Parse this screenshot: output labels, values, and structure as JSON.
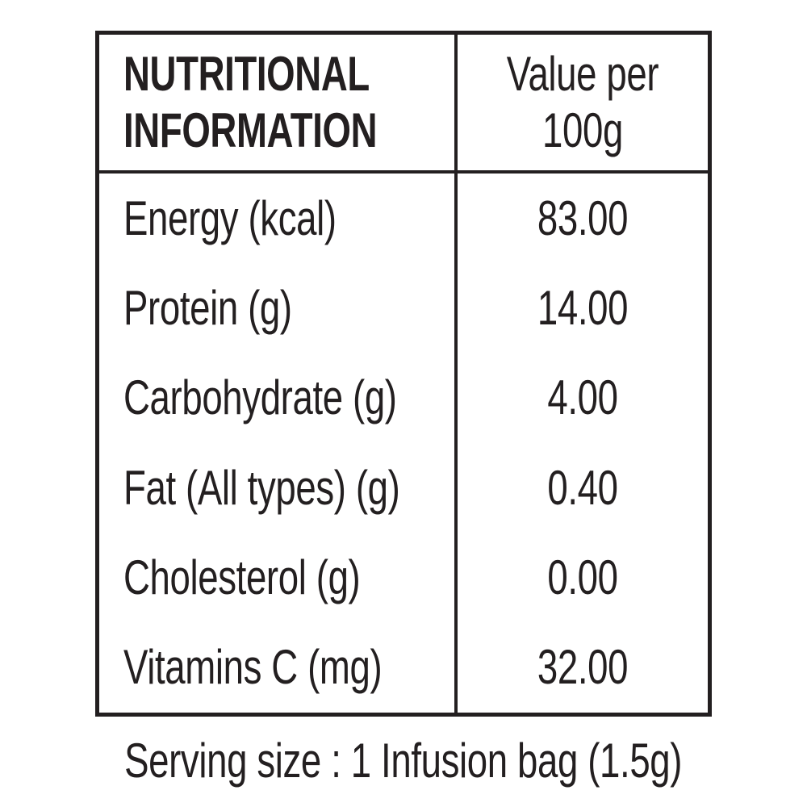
{
  "table": {
    "header": {
      "col1": "NUTRITIONAL INFORMATION",
      "col2": "Value per 100g"
    },
    "rows": [
      {
        "label": "Energy (kcal)",
        "value": "83.00"
      },
      {
        "label": "Protein (g)",
        "value": "14.00"
      },
      {
        "label": "Carbohydrate (g)",
        "value": "4.00"
      },
      {
        "label": "Fat (All types) (g)",
        "value": "0.40"
      },
      {
        "label": "Cholesterol (g)",
        "value": "0.00"
      },
      {
        "label": "Vitamins C (mg)",
        "value": "32.00"
      }
    ],
    "footer_note": "Serving size : 1 Infusion bag (1.5g)"
  },
  "colors": {
    "ink": "#231f20",
    "background": "#ffffff"
  }
}
